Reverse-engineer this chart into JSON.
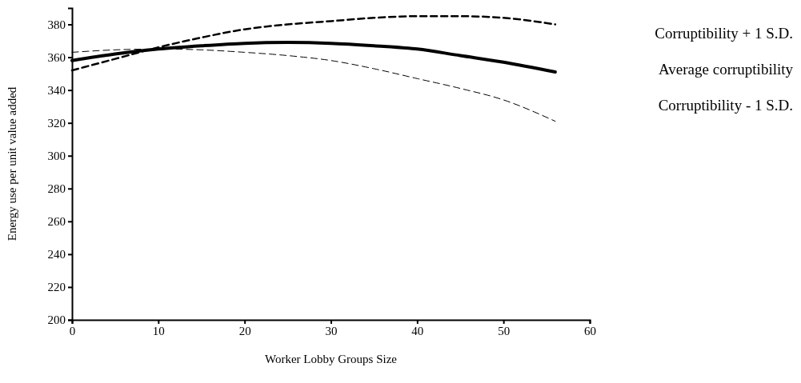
{
  "chart_data": {
    "type": "line",
    "xlabel": "Worker Lobby Groups Size",
    "ylabel": "Energy use per unit value added",
    "xlim": [
      0,
      60
    ],
    "xticks": [
      0,
      10,
      20,
      30,
      40,
      50,
      60
    ],
    "ylim": [
      200,
      390
    ],
    "yticks": [
      200,
      220,
      240,
      260,
      280,
      300,
      320,
      340,
      360,
      380
    ],
    "grid": false,
    "legend": "right",
    "marker": "none",
    "x": [
      0,
      5,
      10,
      15,
      20,
      25,
      30,
      35,
      40,
      45,
      50,
      56
    ],
    "series": [
      {
        "name": "Corruptibility + 1 S.D.",
        "color": "#000000",
        "line_style": "dashed",
        "values": [
          352,
          359,
          366,
          372,
          377,
          380,
          382,
          384,
          385,
          385,
          384,
          380
        ]
      },
      {
        "name": "Average corruptibility",
        "color": "#000000",
        "line_style": "solid",
        "values": [
          358,
          362,
          365,
          367,
          368.5,
          369,
          368.5,
          367,
          365,
          361,
          357,
          351
        ]
      },
      {
        "name": "Corruptibility - 1 S.D.",
        "color": "#000000",
        "line_style": "dashed",
        "values": [
          363,
          364.5,
          365,
          364.5,
          363,
          361,
          358,
          353,
          347,
          341,
          334,
          321
        ]
      }
    ]
  }
}
